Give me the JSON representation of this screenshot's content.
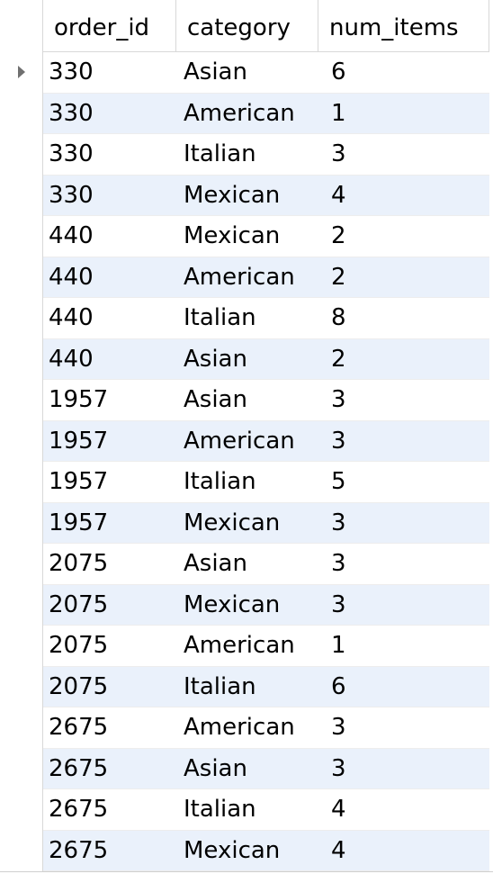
{
  "table": {
    "columns": [
      "order_id",
      "category",
      "num_items"
    ],
    "rows": [
      {
        "order_id": "330",
        "category": "Asian",
        "num_items": "6"
      },
      {
        "order_id": "330",
        "category": "American",
        "num_items": "1"
      },
      {
        "order_id": "330",
        "category": "Italian",
        "num_items": "3"
      },
      {
        "order_id": "330",
        "category": "Mexican",
        "num_items": "4"
      },
      {
        "order_id": "440",
        "category": "Mexican",
        "num_items": "2"
      },
      {
        "order_id": "440",
        "category": "American",
        "num_items": "2"
      },
      {
        "order_id": "440",
        "category": "Italian",
        "num_items": "8"
      },
      {
        "order_id": "440",
        "category": "Asian",
        "num_items": "2"
      },
      {
        "order_id": "1957",
        "category": "Asian",
        "num_items": "3"
      },
      {
        "order_id": "1957",
        "category": "American",
        "num_items": "3"
      },
      {
        "order_id": "1957",
        "category": "Italian",
        "num_items": "5"
      },
      {
        "order_id": "1957",
        "category": "Mexican",
        "num_items": "3"
      },
      {
        "order_id": "2075",
        "category": "Asian",
        "num_items": "3"
      },
      {
        "order_id": "2075",
        "category": "Mexican",
        "num_items": "3"
      },
      {
        "order_id": "2075",
        "category": "American",
        "num_items": "1"
      },
      {
        "order_id": "2075",
        "category": "Italian",
        "num_items": "6"
      },
      {
        "order_id": "2675",
        "category": "American",
        "num_items": "3"
      },
      {
        "order_id": "2675",
        "category": "Asian",
        "num_items": "3"
      },
      {
        "order_id": "2675",
        "category": "Italian",
        "num_items": "4"
      },
      {
        "order_id": "2675",
        "category": "Mexican",
        "num_items": "4"
      }
    ],
    "current_row_indicator": "row-pointer-icon",
    "colors": {
      "alt_row": "#eaf1fb",
      "grid_line": "#d8d8d8",
      "indicator": "#707070"
    }
  }
}
